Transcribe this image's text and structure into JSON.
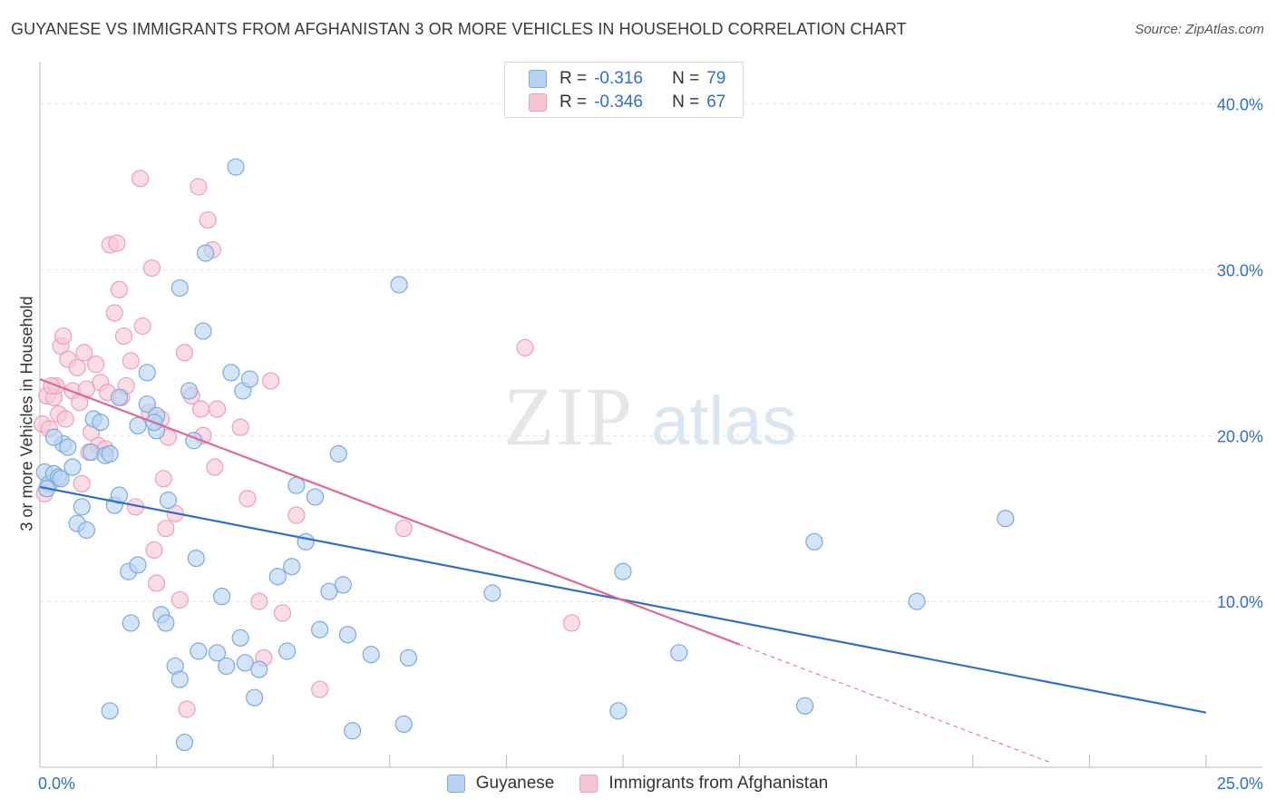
{
  "header": {
    "title": "GUYANESE VS IMMIGRANTS FROM AFGHANISTAN 3 OR MORE VEHICLES IN HOUSEHOLD CORRELATION CHART",
    "source": "Source: ZipAtlas.com"
  },
  "watermark": {
    "zip": "ZIP",
    "atlas": "atlas"
  },
  "legend_top": {
    "rows": [
      {
        "r_label": "R =",
        "r_value": "-0.316",
        "n_label": "N =",
        "n_value": "79"
      },
      {
        "r_label": "R =",
        "r_value": "-0.346",
        "n_label": "N =",
        "n_value": "67"
      }
    ]
  },
  "legend_bottom": {
    "items": [
      "Guyanese",
      "Immigrants from Afghanistan"
    ]
  },
  "colors": {
    "blue_fill": "#b8d3f2",
    "blue_stroke": "#7aaae0",
    "blue_line": "#2f6fc7",
    "pink_fill": "#f7c6d6",
    "pink_stroke": "#eda0b8",
    "pink_line": "#e0688f",
    "tick_text": "#2f6fc7",
    "grid": "#e2e2e2"
  },
  "chart_data": {
    "type": "scatter",
    "title": "GUYANESE VS IMMIGRANTS FROM AFGHANISTAN 3 OR MORE VEHICLES IN HOUSEHOLD CORRELATION CHART",
    "xlabel": "",
    "ylabel": "3 or more Vehicles in Household",
    "xlim": [
      0,
      25
    ],
    "ylim": [
      0,
      42
    ],
    "x_tick_labels": [
      "0.0%",
      "25.0%"
    ],
    "y_ticks": [
      10,
      20,
      30,
      40
    ],
    "y_tick_labels": [
      "10.0%",
      "20.0%",
      "30.0%",
      "40.0%"
    ],
    "grid": true,
    "legend_position": "top-center",
    "series": [
      {
        "name": "Guyanese",
        "r": -0.316,
        "n": 79,
        "trend": {
          "x": [
            0,
            25
          ],
          "y": [
            16.9,
            3.3
          ]
        },
        "points": [
          [
            0.1,
            17.8
          ],
          [
            0.2,
            17.1
          ],
          [
            0.3,
            17.7
          ],
          [
            0.4,
            17.5
          ],
          [
            0.5,
            19.5
          ],
          [
            0.6,
            19.3
          ],
          [
            0.7,
            18.1
          ],
          [
            0.8,
            14.7
          ],
          [
            0.9,
            15.7
          ],
          [
            1.0,
            14.3
          ],
          [
            1.1,
            19.0
          ],
          [
            1.15,
            21.0
          ],
          [
            1.3,
            20.8
          ],
          [
            1.4,
            18.8
          ],
          [
            1.5,
            18.9
          ],
          [
            1.6,
            15.8
          ],
          [
            1.7,
            16.4
          ],
          [
            1.7,
            22.3
          ],
          [
            1.9,
            11.8
          ],
          [
            1.95,
            8.7
          ],
          [
            2.1,
            12.2
          ],
          [
            2.1,
            20.6
          ],
          [
            2.3,
            21.9
          ],
          [
            2.3,
            23.8
          ],
          [
            2.5,
            21.2
          ],
          [
            2.5,
            20.3
          ],
          [
            2.6,
            9.2
          ],
          [
            2.7,
            8.7
          ],
          [
            2.75,
            16.1
          ],
          [
            2.9,
            6.1
          ],
          [
            3.0,
            5.3
          ],
          [
            3.0,
            28.9
          ],
          [
            3.1,
            1.5
          ],
          [
            3.2,
            22.7
          ],
          [
            3.3,
            19.7
          ],
          [
            3.35,
            12.6
          ],
          [
            3.4,
            7.0
          ],
          [
            3.5,
            26.3
          ],
          [
            3.55,
            31.0
          ],
          [
            3.8,
            6.9
          ],
          [
            3.9,
            10.3
          ],
          [
            4.0,
            6.1
          ],
          [
            4.1,
            23.8
          ],
          [
            4.2,
            36.2
          ],
          [
            4.3,
            7.8
          ],
          [
            4.35,
            22.7
          ],
          [
            4.4,
            6.3
          ],
          [
            4.5,
            23.4
          ],
          [
            4.6,
            4.2
          ],
          [
            4.7,
            5.9
          ],
          [
            5.1,
            11.5
          ],
          [
            5.3,
            7.0
          ],
          [
            5.4,
            12.1
          ],
          [
            5.5,
            17.0
          ],
          [
            5.7,
            13.6
          ],
          [
            5.9,
            16.3
          ],
          [
            6.0,
            8.3
          ],
          [
            6.2,
            10.6
          ],
          [
            6.4,
            18.9
          ],
          [
            6.5,
            11.0
          ],
          [
            6.6,
            8.0
          ],
          [
            6.7,
            2.2
          ],
          [
            7.1,
            6.8
          ],
          [
            7.8,
            2.6
          ],
          [
            7.9,
            6.6
          ],
          [
            7.7,
            29.1
          ],
          [
            9.7,
            10.5
          ],
          [
            12.4,
            3.4
          ],
          [
            12.5,
            11.8
          ],
          [
            13.7,
            6.9
          ],
          [
            16.4,
            3.7
          ],
          [
            16.6,
            13.6
          ],
          [
            18.8,
            10.0
          ],
          [
            20.7,
            15.0
          ],
          [
            1.5,
            3.4
          ],
          [
            0.15,
            16.8
          ],
          [
            0.45,
            17.4
          ],
          [
            2.45,
            20.8
          ],
          [
            0.3,
            19.9
          ]
        ]
      },
      {
        "name": "Immigrants from Afghanistan",
        "r": -0.346,
        "n": 67,
        "trend": {
          "x": [
            0,
            15
          ],
          "y": [
            23.4,
            7.4
          ]
        },
        "trend_dashed": {
          "x": [
            15,
            21.7
          ],
          "y": [
            7.4,
            0.25
          ]
        },
        "points": [
          [
            0.05,
            20.7
          ],
          [
            0.1,
            16.5
          ],
          [
            0.15,
            22.4
          ],
          [
            0.2,
            20.4
          ],
          [
            0.3,
            22.3
          ],
          [
            0.35,
            23.0
          ],
          [
            0.4,
            21.3
          ],
          [
            0.45,
            25.4
          ],
          [
            0.5,
            26.0
          ],
          [
            0.6,
            24.6
          ],
          [
            0.7,
            22.7
          ],
          [
            0.8,
            24.1
          ],
          [
            0.85,
            22.0
          ],
          [
            0.9,
            17.1
          ],
          [
            0.95,
            25.0
          ],
          [
            1.0,
            22.8
          ],
          [
            1.1,
            20.2
          ],
          [
            1.2,
            24.3
          ],
          [
            1.25,
            19.4
          ],
          [
            1.3,
            23.2
          ],
          [
            1.4,
            19.2
          ],
          [
            1.45,
            22.6
          ],
          [
            1.5,
            31.5
          ],
          [
            1.6,
            27.4
          ],
          [
            1.65,
            31.6
          ],
          [
            1.7,
            28.8
          ],
          [
            1.75,
            22.3
          ],
          [
            1.8,
            26.0
          ],
          [
            1.85,
            23.0
          ],
          [
            1.95,
            24.5
          ],
          [
            2.05,
            15.7
          ],
          [
            2.15,
            35.5
          ],
          [
            2.2,
            26.6
          ],
          [
            2.4,
            30.1
          ],
          [
            2.45,
            13.1
          ],
          [
            2.5,
            11.1
          ],
          [
            2.6,
            21.0
          ],
          [
            2.65,
            17.4
          ],
          [
            2.7,
            14.4
          ],
          [
            2.75,
            19.9
          ],
          [
            2.9,
            15.3
          ],
          [
            3.0,
            10.1
          ],
          [
            3.1,
            25.0
          ],
          [
            3.15,
            3.5
          ],
          [
            3.25,
            22.4
          ],
          [
            3.4,
            35.0
          ],
          [
            3.45,
            21.6
          ],
          [
            3.5,
            20.0
          ],
          [
            3.6,
            33.0
          ],
          [
            3.7,
            31.2
          ],
          [
            3.75,
            18.1
          ],
          [
            3.8,
            21.6
          ],
          [
            4.3,
            20.5
          ],
          [
            4.45,
            16.2
          ],
          [
            4.7,
            10.0
          ],
          [
            4.8,
            6.6
          ],
          [
            4.95,
            23.3
          ],
          [
            5.2,
            9.3
          ],
          [
            5.5,
            15.2
          ],
          [
            6.0,
            4.7
          ],
          [
            7.8,
            14.4
          ],
          [
            10.4,
            25.3
          ],
          [
            11.4,
            8.7
          ],
          [
            0.25,
            23.0
          ],
          [
            0.55,
            21.0
          ],
          [
            1.05,
            19.0
          ],
          [
            2.35,
            21.4
          ]
        ]
      }
    ]
  }
}
